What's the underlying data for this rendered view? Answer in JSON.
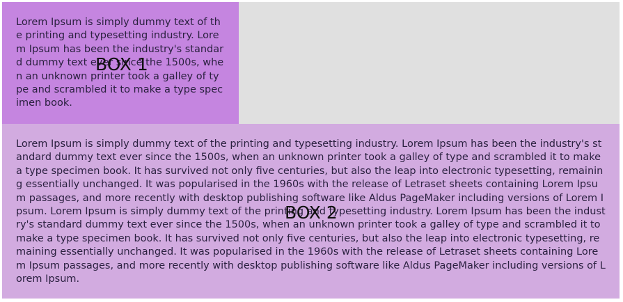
{
  "box1": {
    "label": "BOX 1",
    "text": "Lorem Ipsum is simply dummy text of the printing and typesetting industry. Lorem Ipsum has been the industry's standard dummy text ever since the 1500s, when an unknown printer took a galley of type and scrambled it to make a type specimen book."
  },
  "box2": {
    "label": "BOX 2",
    "text": "Lorem Ipsum is simply dummy text of the printing and typesetting industry. Lorem Ipsum has been the industry's standard dummy text ever since the 1500s, when an unknown printer took a galley of type and scrambled it to make a type specimen book. It has survived not only five centuries, but also the leap into electronic typesetting, remaining essentially unchanged. It was popularised in the 1960s with the release of Letraset sheets containing Lorem Ipsum passages, and more recently with desktop publishing software like Aldus PageMaker including versions of Lorem Ipsum. Lorem Ipsum is simply dummy text of the printing and typesetting industry. Lorem Ipsum has been the industry's standard dummy text ever since the 1500s, when an unknown printer took a galley of type and scrambled it to make a type specimen book. It has survived not only five centuries, but also the leap into electronic typesetting, remaining essentially unchanged. It was popularised in the 1960s with the release of Letraset sheets containing Lorem Ipsum passages, and more recently with desktop publishing software like Aldus PageMaker including versions of Lorem Ipsum."
  },
  "colors": {
    "box1_bg": "#c585e0",
    "box2_bg": "#d2abe0",
    "empty_bg": "#e0e0e0"
  }
}
